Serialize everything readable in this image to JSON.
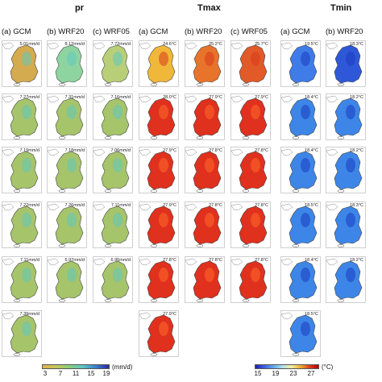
{
  "groups": [
    {
      "key": "pr",
      "title": "pr",
      "cols": [
        "(a) GCM",
        "(b) WRF20",
        "(c) WRF05"
      ],
      "values": [
        [
          "5.01mm/d",
          "8.12mm/d",
          "7.72mm/d"
        ],
        [
          "7.27mm/d",
          "7.31mm/d",
          "7.16mm/d"
        ],
        [
          "7.19mm/d",
          "7.18mm/d",
          "7.06mm/d"
        ],
        [
          "7.22mm/d",
          "7.26mm/d",
          "7.11mm/d"
        ],
        [
          "7.11mm/d",
          "6.97mm/d",
          "6.95mm/d"
        ],
        [
          "7.39mm/d",
          "",
          ""
        ]
      ]
    },
    {
      "key": "tmax",
      "title": "Tmax",
      "cols": [
        "(a) GCM",
        "(b) WRF20",
        "(c) WRF05"
      ],
      "values": [
        [
          "24.6°C",
          "25.2°C",
          "25.7°C"
        ],
        [
          "28.0°C",
          "27.9°C",
          "27.9°C"
        ],
        [
          "27.9°C",
          "27.8°C",
          "27.8°C"
        ],
        [
          "27.9°C",
          "27.8°C",
          "27.8°C"
        ],
        [
          "27.8°C",
          "27.8°C",
          "27.8°C"
        ],
        [
          "27.9°C",
          "",
          ""
        ]
      ]
    },
    {
      "key": "tmin",
      "title": "Tmin",
      "cols": [
        "(a) GCM",
        "(b) WRF20",
        ""
      ],
      "values": [
        [
          "19.5°C",
          "18.3°C",
          ""
        ],
        [
          "18.4°C",
          "18.2°C",
          ""
        ],
        [
          "18.4°C",
          "18.2°C",
          ""
        ],
        [
          "18.5°C",
          "18.3°C",
          ""
        ],
        [
          "18.4°C",
          "18.2°C",
          ""
        ],
        [
          "18.5°C",
          "",
          ""
        ]
      ]
    }
  ],
  "colorbars": {
    "pr": {
      "ticks": [
        "3",
        "7",
        "11",
        "15",
        "19"
      ],
      "unit": "(mm/d)"
    },
    "temp": {
      "ticks": [
        "15",
        "19",
        "23",
        "27"
      ],
      "unit": "(°C)"
    }
  },
  "colors": {
    "pr_scale": [
      "#e0b24a",
      "#c6c75a",
      "#8ccf7a",
      "#5fc8c2",
      "#3a7fd0",
      "#2a2aa0"
    ],
    "temp_scale": [
      "#2020b0",
      "#4060e0",
      "#60a8f0",
      "#b0e0f0",
      "#f6f0a0",
      "#f0b030",
      "#e04020",
      "#b00000"
    ]
  }
}
